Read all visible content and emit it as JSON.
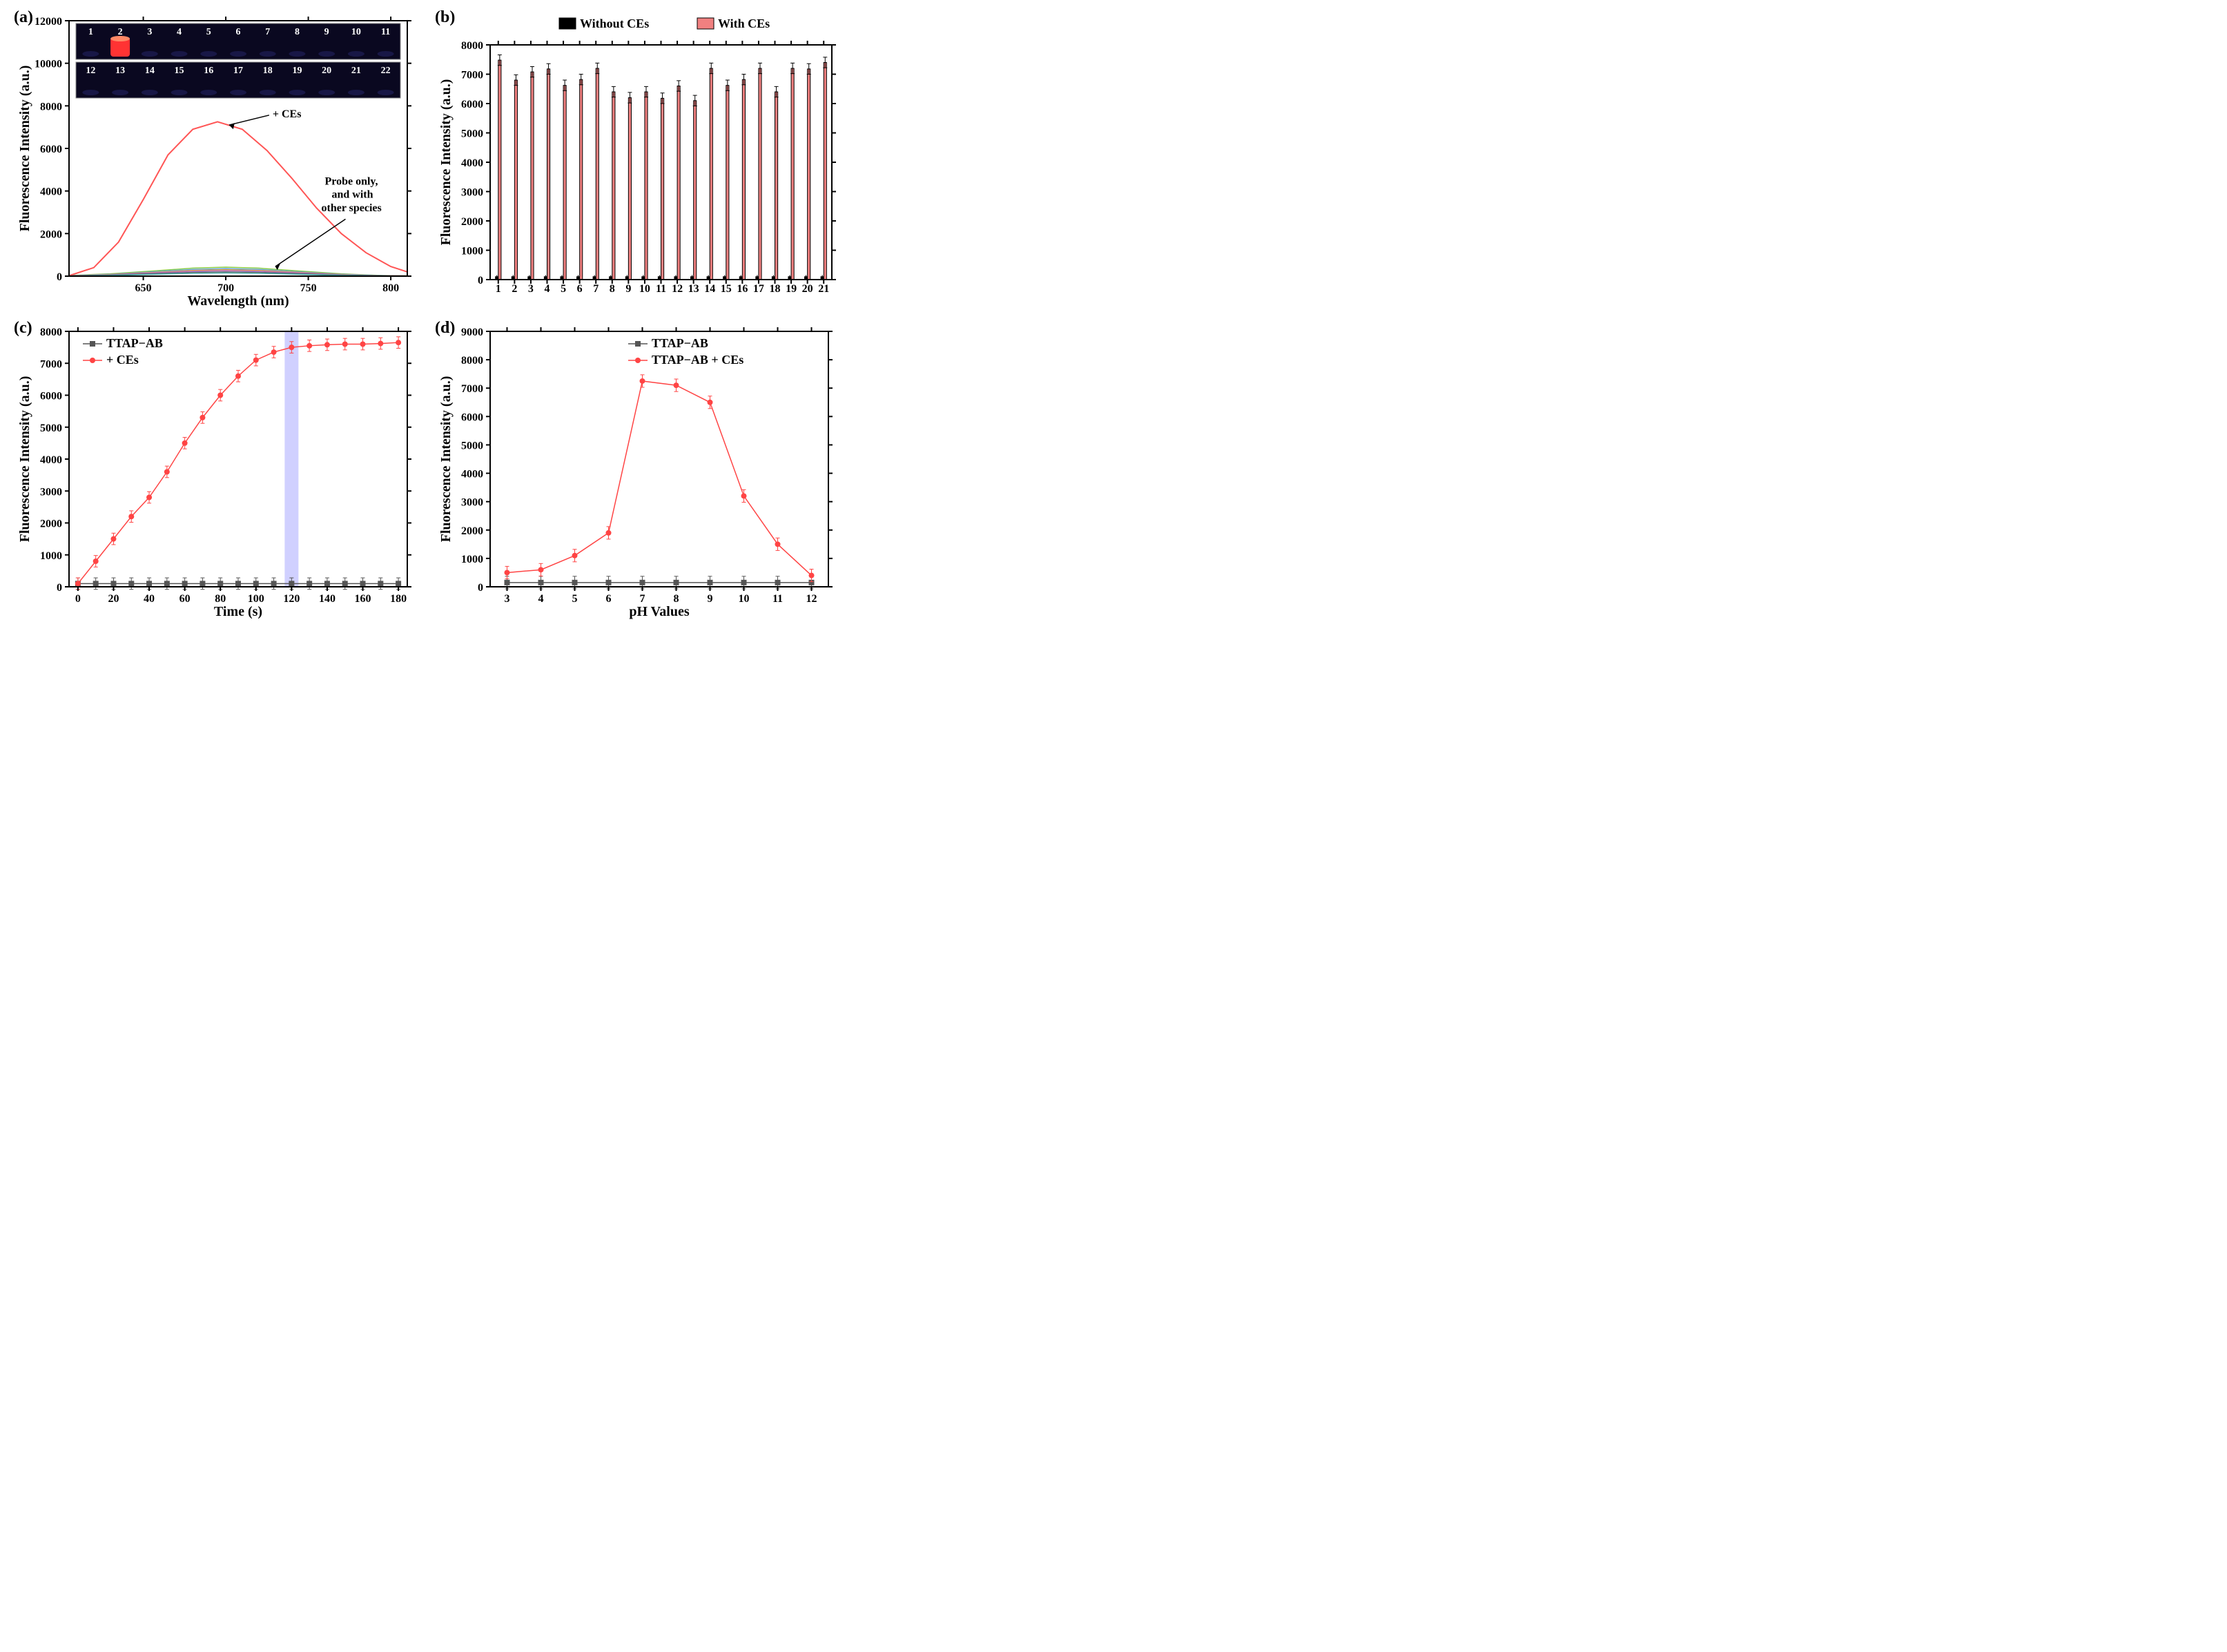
{
  "panel_a": {
    "letter": "(a)",
    "type": "line",
    "xlabel": "Wavelength (nm)",
    "ylabel": "Fluorescence Intensity (a.u.)",
    "xlim": [
      605,
      810
    ],
    "ylim": [
      0,
      12000
    ],
    "xticks": [
      650,
      700,
      750,
      800
    ],
    "yticks": [
      0,
      2000,
      4000,
      6000,
      8000,
      10000,
      12000
    ],
    "annotation_ces": "+ CEs",
    "annotation_probe_l1": "Probe only,",
    "annotation_probe_l2": "and with",
    "annotation_probe_l3": "other species",
    "ces_curve": {
      "color": "#ff5555",
      "line_width": 2,
      "x": [
        605,
        620,
        635,
        650,
        665,
        680,
        695,
        710,
        725,
        740,
        755,
        770,
        785,
        800,
        810
      ],
      "y": [
        20,
        400,
        1600,
        3600,
        5700,
        6900,
        7250,
        6900,
        5900,
        4600,
        3200,
        2000,
        1100,
        450,
        200
      ]
    },
    "other_curves": [
      {
        "color": "#88cc44",
        "peak": 420
      },
      {
        "color": "#5599dd",
        "peak": 350
      },
      {
        "color": "#ffaa33",
        "peak": 300
      },
      {
        "color": "#aa66cc",
        "peak": 260
      },
      {
        "color": "#666666",
        "peak": 200
      },
      {
        "color": "#44aaaa",
        "peak": 150
      }
    ],
    "other_x": [
      605,
      630,
      655,
      680,
      700,
      720,
      745,
      770,
      795,
      810
    ],
    "vial_photo": {
      "bg_color": "#0a0820",
      "vial_label_color": "#ffffff",
      "labels_top": [
        "1",
        "2",
        "3",
        "4",
        "5",
        "6",
        "7",
        "8",
        "9",
        "10",
        "11"
      ],
      "labels_bot": [
        "12",
        "13",
        "14",
        "15",
        "16",
        "17",
        "18",
        "19",
        "20",
        "21",
        "22"
      ],
      "glow_vial_index": 1,
      "glow_color": "#ff3333",
      "vial_base_color": "#1a1a4a"
    },
    "background_color": "#ffffff",
    "axis_line_width": 2
  },
  "panel_b": {
    "letter": "(b)",
    "type": "grouped-bar",
    "ylabel": "Fluorescence Intensity (a.u.)",
    "xlim": [
      0.5,
      21.5
    ],
    "ylim": [
      0,
      8000
    ],
    "yticks": [
      0,
      1000,
      2000,
      3000,
      4000,
      5000,
      6000,
      7000,
      8000
    ],
    "categories": [
      1,
      2,
      3,
      4,
      5,
      6,
      7,
      8,
      9,
      10,
      11,
      12,
      13,
      14,
      15,
      16,
      17,
      18,
      19,
      20,
      21
    ],
    "legend_without": "Without CEs",
    "legend_with": "With CEs",
    "without_color": "#000000",
    "with_color": "#f08080",
    "bar_border": "#000000",
    "bar_width": 0.35,
    "values_without": [
      100,
      100,
      100,
      100,
      100,
      100,
      100,
      100,
      100,
      100,
      100,
      100,
      100,
      100,
      100,
      100,
      100,
      100,
      100,
      100,
      100
    ],
    "values_with": [
      7480,
      6800,
      7080,
      7180,
      6620,
      6820,
      7200,
      6400,
      6200,
      6400,
      6180,
      6600,
      6100,
      7200,
      6620,
      6820,
      7200,
      6400,
      7200,
      7180,
      7400
    ],
    "err": 180,
    "background_color": "#ffffff",
    "axis_line_width": 2
  },
  "panel_c": {
    "letter": "(c)",
    "type": "line-scatter",
    "xlabel": "Time (s)",
    "ylabel": "Fluorescence Intensity (a.u.)",
    "xlim": [
      -5,
      185
    ],
    "ylim": [
      0,
      8000
    ],
    "xticks": [
      0,
      20,
      40,
      60,
      80,
      100,
      120,
      140,
      160,
      180
    ],
    "yticks": [
      0,
      1000,
      2000,
      3000,
      4000,
      5000,
      6000,
      7000,
      8000
    ],
    "legend_ab": "TTAP−AB",
    "legend_ces": "+ CEs",
    "series_ab": {
      "color": "#555555",
      "marker": "square",
      "marker_size": 8,
      "line_width": 1.5,
      "x": [
        0,
        10,
        20,
        30,
        40,
        50,
        60,
        70,
        80,
        90,
        100,
        110,
        120,
        130,
        140,
        150,
        160,
        170,
        180
      ],
      "y": [
        100,
        100,
        100,
        100,
        100,
        100,
        100,
        100,
        100,
        100,
        100,
        100,
        100,
        100,
        100,
        100,
        100,
        100,
        100
      ]
    },
    "series_ces": {
      "color": "#ff4444",
      "marker": "circle",
      "marker_size": 8,
      "line_width": 1.5,
      "x": [
        0,
        10,
        20,
        30,
        40,
        50,
        60,
        70,
        80,
        90,
        100,
        110,
        120,
        130,
        140,
        150,
        160,
        170,
        180
      ],
      "y": [
        100,
        800,
        1500,
        2200,
        2800,
        3600,
        4500,
        5300,
        6000,
        6600,
        7100,
        7350,
        7500,
        7550,
        7580,
        7600,
        7600,
        7620,
        7650
      ]
    },
    "err": 180,
    "highlight_x": 120,
    "highlight_color": "rgba(120,120,255,0.35)",
    "background_color": "#ffffff",
    "axis_line_width": 2
  },
  "panel_d": {
    "letter": "(d)",
    "type": "line-scatter",
    "xlabel": "pH Values",
    "ylabel": "Fluorescence Intensity (a.u.)",
    "xlim": [
      2.5,
      12.5
    ],
    "ylim": [
      0,
      9000
    ],
    "xticks": [
      3,
      4,
      5,
      6,
      7,
      8,
      9,
      10,
      11,
      12
    ],
    "yticks": [
      0,
      1000,
      2000,
      3000,
      4000,
      5000,
      6000,
      7000,
      8000,
      9000
    ],
    "legend_ab": "TTAP−AB",
    "legend_ces": "TTAP−AB + CEs",
    "series_ab": {
      "color": "#555555",
      "marker": "square",
      "marker_size": 8,
      "line_width": 1.5,
      "x": [
        3,
        4,
        5,
        6,
        7,
        8,
        9,
        10,
        11,
        12
      ],
      "y": [
        150,
        150,
        150,
        150,
        150,
        150,
        150,
        150,
        150,
        150
      ]
    },
    "series_ces": {
      "color": "#ff4444",
      "marker": "circle",
      "marker_size": 8,
      "line_width": 1.5,
      "x": [
        3,
        4,
        5,
        6,
        7,
        8,
        9,
        10,
        11,
        12
      ],
      "y": [
        500,
        600,
        1100,
        1900,
        7250,
        7100,
        6500,
        3200,
        1500,
        400
      ]
    },
    "err": 220,
    "background_color": "#ffffff",
    "axis_line_width": 2
  }
}
